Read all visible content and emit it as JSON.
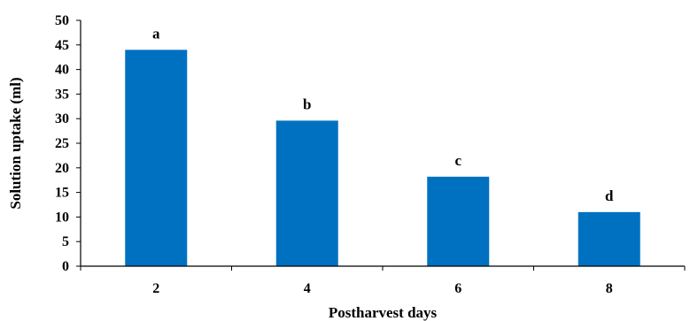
{
  "chart_data": {
    "type": "bar",
    "title": "",
    "xlabel": "Postharvest days",
    "ylabel": "Solution uptake (ml)",
    "categories": [
      "2",
      "4",
      "6",
      "8"
    ],
    "values": [
      44,
      29.6,
      18.2,
      11
    ],
    "bar_labels": [
      "a",
      "b",
      "c",
      "d"
    ],
    "ylim": [
      0,
      50
    ],
    "yticks": [
      "0",
      "5",
      "10",
      "15",
      "20",
      "25",
      "30",
      "35",
      "40",
      "45",
      "50"
    ],
    "grid": false,
    "bar_color": "#0070C0"
  }
}
